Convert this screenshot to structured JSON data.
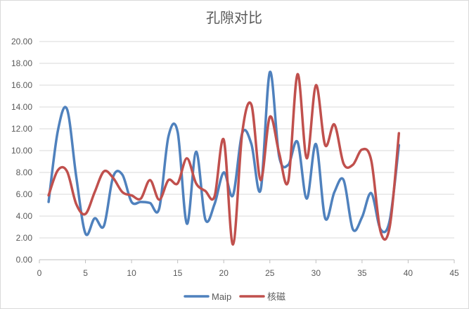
{
  "chart_data": {
    "type": "line",
    "title": "孔隙对比",
    "xlabel": "",
    "ylabel": "",
    "xlim": [
      0,
      45
    ],
    "ylim": [
      0,
      20
    ],
    "x_ticks": [
      "0",
      "5",
      "10",
      "15",
      "20",
      "25",
      "30",
      "35",
      "40",
      "45"
    ],
    "y_ticks": [
      "0.00",
      "2.00",
      "4.00",
      "6.00",
      "8.00",
      "10.00",
      "12.00",
      "14.00",
      "16.00",
      "18.00",
      "20.00"
    ],
    "grid": "horizontal",
    "legend_position": "bottom",
    "x": [
      1,
      2,
      3,
      4,
      5,
      6,
      7,
      8,
      9,
      10,
      11,
      12,
      13,
      14,
      15,
      16,
      17,
      18,
      19,
      20,
      21,
      22,
      23,
      24,
      25,
      26,
      27,
      28,
      29,
      30,
      31,
      32,
      33,
      34,
      35,
      36,
      37,
      38,
      39
    ],
    "series": [
      {
        "name": "Maip",
        "color": "#4f81bd",
        "values": [
          5.3,
          11.8,
          13.8,
          7.6,
          2.4,
          3.8,
          3.1,
          7.6,
          7.8,
          5.3,
          5.3,
          5.2,
          4.7,
          11.3,
          11.7,
          3.3,
          9.9,
          3.7,
          5.1,
          8.0,
          5.9,
          11.6,
          10.6,
          6.4,
          17.2,
          9.5,
          8.7,
          10.8,
          5.6,
          10.6,
          3.8,
          6.2,
          7.3,
          2.8,
          3.9,
          6.1,
          2.8,
          3.6,
          10.5
        ]
      },
      {
        "name": "核磁",
        "color": "#c0504d",
        "values": [
          5.9,
          8.2,
          8.1,
          5.1,
          4.2,
          6.2,
          8.1,
          7.5,
          6.2,
          5.9,
          5.6,
          7.3,
          5.5,
          7.3,
          7.0,
          9.3,
          7.0,
          6.3,
          5.8,
          11.0,
          1.4,
          11.6,
          14.2,
          7.3,
          13.1,
          9.8,
          7.2,
          17.0,
          9.3,
          16.0,
          10.5,
          12.4,
          8.8,
          8.7,
          10.1,
          9.1,
          2.6,
          3.0,
          11.6
        ]
      }
    ]
  }
}
